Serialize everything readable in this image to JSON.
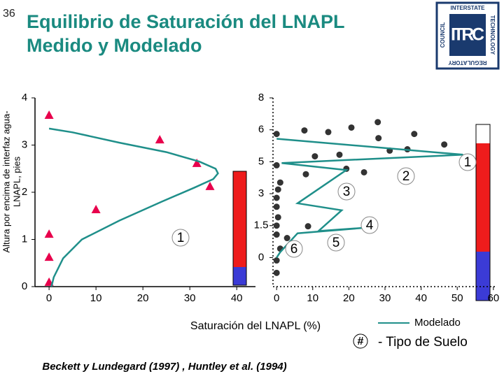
{
  "slide_number": "36",
  "title": [
    "Equilibrio de Saturación del LNAPL",
    "Medido y Modelado"
  ],
  "logo": {
    "center": "ITRC",
    "top": "INTERSTATE",
    "right": "TECHNOLOGY",
    "bottom": "REGULATORY",
    "left": "COUNCIL"
  },
  "x_label": "Saturación del LNAPL (%)",
  "soil_legend": {
    "symbol": "#",
    "text": "- Tipo de Suelo"
  },
  "citation": "Beckett y Lundegard (1997) , Huntley et al. (1994)",
  "chart_data": [
    {
      "type": "scatter",
      "y_label": [
        "Altura por encima de interfaz agua-",
        "LNAPL, pies"
      ],
      "xlim": [
        -3,
        44
      ],
      "ylim": [
        0,
        4
      ],
      "xticks": [
        0,
        10,
        20,
        30,
        40
      ],
      "yticks": [
        0,
        1,
        2,
        3,
        4
      ],
      "annotations": [
        "1"
      ],
      "series": [
        {
          "marker": "triangle",
          "color": "#e8004c",
          "x": [
            0,
            23.6,
            31.5,
            34.3,
            10,
            0,
            0,
            0
          ],
          "values": [
            3.63,
            3.11,
            2.61,
            2.12,
            1.63,
            1.11,
            0.62,
            0.09
          ]
        },
        {
          "marker": "line",
          "name": "Modelado",
          "color": "#1f8f8a",
          "x": [
            0,
            5,
            15,
            25,
            32,
            35.5,
            36,
            35,
            31,
            24,
            15,
            7,
            3,
            1,
            0.5
          ],
          "values": [
            3.35,
            3.27,
            3.05,
            2.85,
            2.65,
            2.5,
            2.4,
            2.28,
            2.1,
            1.8,
            1.4,
            1.0,
            0.6,
            0.2,
            0
          ]
        }
      ]
    },
    {
      "type": "scatter",
      "xlim": [
        -1,
        61
      ],
      "ylim": [
        -0.91,
        5
      ],
      "xticks": [
        0,
        10,
        20,
        30,
        40,
        50,
        60
      ],
      "yticks": [
        {
          "value": 0,
          "label": "0"
        },
        {
          "value": 1,
          "label": "1.5"
        },
        {
          "value": 2,
          "label": "3"
        },
        {
          "value": 3,
          "label": "5"
        },
        {
          "value": 4,
          "label": "6"
        },
        {
          "value": 5,
          "label": "8"
        }
      ],
      "annotations": [
        "1",
        "2",
        "3",
        "4",
        "5",
        "6"
      ],
      "series": [
        {
          "marker": "circle",
          "color": "#333333",
          "x": [
            7.7,
            14.3,
            20.7,
            28.0,
            0,
            28.2,
            38.1,
            46.4,
            36.2,
            31.3,
            10.6,
            17.4,
            0,
            8.1,
            24.2,
            19.3,
            1.0,
            0.4,
            0,
            0,
            0.4,
            0,
            0,
            8.7,
            2.9,
            1.0,
            0,
            0
          ],
          "values": [
            3.98,
            3.93,
            4.07,
            4.24,
            3.87,
            3.74,
            3.87,
            3.54,
            3.39,
            3.35,
            3.17,
            3.22,
            2.89,
            2.61,
            2.67,
            2.78,
            2.35,
            2.13,
            1.87,
            1.59,
            1.26,
            1.0,
            0.72,
            0.98,
            0.61,
            0.28,
            -0.09,
            -0.48
          ]
        },
        {
          "marker": "line",
          "color": "#1f8f8a",
          "x": [
            0,
            51.6,
            1.4,
            19.3,
            5.8,
            18.0,
            11.6,
            24.2,
            5.8,
            1.0,
            0
          ],
          "values": [
            3.72,
            3.22,
            2.96,
            2.74,
            1.7,
            1.48,
            0.83,
            0.93,
            0.76,
            0.17,
            0
          ]
        }
      ]
    }
  ]
}
